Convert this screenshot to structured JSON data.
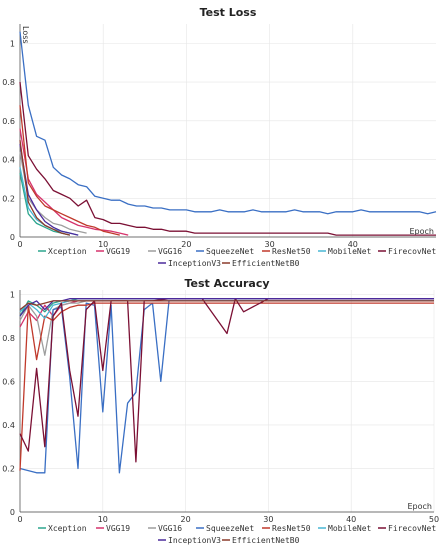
{
  "chart_data": [
    {
      "type": "line",
      "title": "Test Loss",
      "xlabel": "Epoch",
      "ylabel": "Loss",
      "xlim": [
        0,
        50
      ],
      "ylim": [
        0,
        1.1
      ],
      "xticks": [
        0,
        10,
        20,
        30,
        40
      ],
      "yticks": [
        0,
        0.2,
        0.4,
        0.6,
        0.8,
        1
      ],
      "grid": true,
      "legend": "bottom",
      "series": [
        {
          "name": "Xception",
          "color": "#2ca58d",
          "x": [
            0,
            1,
            2,
            3,
            4,
            5,
            6
          ],
          "values": [
            0.33,
            0.12,
            0.07,
            0.05,
            0.03,
            0.02,
            0.01
          ]
        },
        {
          "name": "VGG19",
          "color": "#d6336c",
          "x": [
            0,
            1,
            2,
            3,
            4,
            5,
            6,
            7,
            8,
            9,
            10,
            11,
            12,
            13
          ],
          "values": [
            0.56,
            0.3,
            0.22,
            0.18,
            0.14,
            0.1,
            0.08,
            0.06,
            0.05,
            0.04,
            0.035,
            0.03,
            0.02,
            0.01
          ]
        },
        {
          "name": "VGG16",
          "color": "#9e9e9e",
          "x": [
            0,
            1,
            2,
            3,
            4,
            5,
            6,
            7,
            8
          ],
          "values": [
            0.44,
            0.2,
            0.14,
            0.1,
            0.07,
            0.06,
            0.04,
            0.03,
            0.02
          ]
        },
        {
          "name": "SqueezeNet",
          "color": "#3a6fc4",
          "x": [
            0,
            1,
            2,
            3,
            4,
            5,
            6,
            7,
            8,
            9,
            10,
            11,
            12,
            13,
            14,
            15,
            16,
            17,
            18,
            19,
            20,
            21,
            22,
            23,
            24,
            25,
            26,
            27,
            28,
            29,
            30,
            31,
            32,
            33,
            34,
            35,
            36,
            37,
            38,
            39,
            40,
            41,
            42,
            43,
            44,
            45,
            46,
            47,
            48,
            49,
            50
          ],
          "values": [
            1.06,
            0.68,
            0.52,
            0.5,
            0.36,
            0.32,
            0.3,
            0.27,
            0.26,
            0.21,
            0.2,
            0.19,
            0.19,
            0.17,
            0.16,
            0.16,
            0.15,
            0.15,
            0.14,
            0.14,
            0.14,
            0.13,
            0.13,
            0.13,
            0.14,
            0.13,
            0.13,
            0.13,
            0.14,
            0.13,
            0.13,
            0.13,
            0.13,
            0.14,
            0.13,
            0.13,
            0.13,
            0.12,
            0.13,
            0.13,
            0.13,
            0.14,
            0.13,
            0.13,
            0.13,
            0.13,
            0.13,
            0.13,
            0.13,
            0.12,
            0.13
          ]
        },
        {
          "name": "ResNet50",
          "color": "#c0392b",
          "x": [
            0,
            1,
            2,
            3,
            4,
            5,
            6,
            7,
            8,
            9,
            10,
            11,
            12
          ],
          "values": [
            0.68,
            0.28,
            0.21,
            0.16,
            0.14,
            0.12,
            0.1,
            0.08,
            0.06,
            0.05,
            0.03,
            0.02,
            0.01
          ]
        },
        {
          "name": "MobileNet",
          "color": "#48b7d4",
          "x": [
            0,
            1,
            2,
            3,
            4,
            5,
            6,
            7
          ],
          "values": [
            0.36,
            0.15,
            0.09,
            0.06,
            0.04,
            0.03,
            0.02,
            0.01
          ]
        },
        {
          "name": "FirecovNet",
          "color": "#7b1034",
          "x": [
            0,
            1,
            2,
            3,
            4,
            5,
            6,
            7,
            8,
            9,
            10,
            11,
            12,
            13,
            14,
            15,
            16,
            17,
            18,
            19,
            20,
            21,
            22,
            23,
            24,
            25,
            26,
            27,
            28,
            29,
            30,
            31,
            32,
            33,
            34,
            35,
            36,
            37,
            38,
            39,
            40,
            41,
            42,
            43,
            44,
            45,
            46,
            47,
            48,
            49,
            50
          ],
          "values": [
            0.8,
            0.42,
            0.35,
            0.3,
            0.24,
            0.22,
            0.2,
            0.16,
            0.19,
            0.1,
            0.09,
            0.07,
            0.07,
            0.06,
            0.05,
            0.05,
            0.04,
            0.04,
            0.03,
            0.03,
            0.03,
            0.02,
            0.02,
            0.02,
            0.02,
            0.02,
            0.02,
            0.02,
            0.02,
            0.02,
            0.02,
            0.02,
            0.02,
            0.02,
            0.02,
            0.02,
            0.02,
            0.02,
            0.01,
            0.01,
            0.01,
            0.01,
            0.01,
            0.01,
            0.01,
            0.01,
            0.01,
            0.01,
            0.01,
            0.01,
            0.01
          ]
        },
        {
          "name": "InceptionV3",
          "color": "#4b2a9b",
          "x": [
            0,
            1,
            2,
            3,
            4,
            5,
            6,
            7
          ],
          "values": [
            0.48,
            0.22,
            0.14,
            0.08,
            0.05,
            0.03,
            0.02,
            0.01
          ]
        },
        {
          "name": "EfficientNetB0",
          "color": "#8b3a2a",
          "x": [
            0,
            1,
            2,
            3,
            4,
            5,
            6
          ],
          "values": [
            0.5,
            0.18,
            0.1,
            0.06,
            0.04,
            0.02,
            0.01
          ]
        }
      ]
    },
    {
      "type": "line",
      "title": "Test Accuracy",
      "xlabel": "Epoch",
      "ylabel": "",
      "xlim": [
        0,
        50
      ],
      "ylim": [
        0,
        1.02
      ],
      "xticks": [
        0,
        10,
        20,
        30,
        40,
        50
      ],
      "yticks": [
        0,
        0.2,
        0.4,
        0.6,
        0.8,
        1
      ],
      "grid": true,
      "legend": "bottom",
      "series": [
        {
          "name": "Xception",
          "color": "#2ca58d",
          "x": [
            0,
            1,
            2,
            3,
            4,
            5,
            6,
            7,
            8,
            9,
            10,
            15,
            20,
            30,
            40,
            50
          ],
          "values": [
            0.9,
            0.97,
            0.95,
            0.92,
            0.96,
            0.97,
            0.97,
            0.98,
            0.98,
            0.98,
            0.98,
            0.98,
            0.98,
            0.98,
            0.98,
            0.98
          ]
        },
        {
          "name": "VGG19",
          "color": "#d6336c",
          "x": [
            0,
            1,
            2,
            3,
            4,
            5,
            6,
            7,
            8,
            9,
            10,
            15,
            20,
            30,
            40,
            50
          ],
          "values": [
            0.85,
            0.92,
            0.88,
            0.95,
            0.9,
            0.95,
            0.96,
            0.97,
            0.97,
            0.97,
            0.97,
            0.97,
            0.97,
            0.97,
            0.97,
            0.97
          ]
        },
        {
          "name": "VGG16",
          "color": "#9e9e9e",
          "x": [
            0,
            1,
            2,
            3,
            4,
            5,
            6,
            7,
            8,
            9,
            10,
            15,
            20,
            30,
            40,
            50
          ],
          "values": [
            0.88,
            0.95,
            0.9,
            0.72,
            0.93,
            0.95,
            0.96,
            0.96,
            0.97,
            0.97,
            0.97,
            0.97,
            0.97,
            0.97,
            0.97,
            0.97
          ]
        },
        {
          "name": "SqueezeNet",
          "color": "#3a6fc4",
          "x": [
            0,
            1,
            2,
            3,
            4,
            5,
            6,
            7,
            8,
            9,
            10,
            11,
            12,
            13,
            14,
            15,
            16,
            17,
            18,
            19,
            20,
            21,
            22,
            25,
            30,
            35,
            40,
            45,
            50
          ],
          "values": [
            0.2,
            0.19,
            0.18,
            0.18,
            0.93,
            0.94,
            0.62,
            0.2,
            0.96,
            0.95,
            0.46,
            0.95,
            0.18,
            0.5,
            0.55,
            0.93,
            0.96,
            0.6,
            0.97,
            0.97,
            0.97,
            0.97,
            0.97,
            0.97,
            0.97,
            0.97,
            0.97,
            0.97,
            0.97
          ]
        },
        {
          "name": "ResNet50",
          "color": "#c0392b",
          "x": [
            0,
            1,
            2,
            3,
            4,
            5,
            6,
            7,
            8,
            9,
            10,
            15,
            20,
            30,
            40,
            50
          ],
          "values": [
            0.19,
            0.95,
            0.7,
            0.9,
            0.88,
            0.92,
            0.94,
            0.95,
            0.95,
            0.96,
            0.96,
            0.96,
            0.96,
            0.96,
            0.96,
            0.96
          ]
        },
        {
          "name": "MobileNet",
          "color": "#48b7d4",
          "x": [
            0,
            1,
            2,
            3,
            4,
            5,
            6,
            7,
            8,
            9,
            10,
            15,
            20,
            30,
            40,
            50
          ],
          "values": [
            0.92,
            0.96,
            0.93,
            0.89,
            0.95,
            0.96,
            0.97,
            0.97,
            0.97,
            0.97,
            0.97,
            0.97,
            0.97,
            0.97,
            0.97,
            0.97
          ]
        },
        {
          "name": "FirecovNet",
          "color": "#7b1034",
          "x": [
            0,
            1,
            2,
            3,
            4,
            5,
            6,
            7,
            8,
            9,
            10,
            11,
            12,
            13,
            14,
            15,
            16,
            18,
            20,
            22,
            25,
            26,
            27,
            30,
            35,
            40,
            45,
            50
          ],
          "values": [
            0.36,
            0.28,
            0.66,
            0.3,
            0.9,
            0.96,
            0.65,
            0.44,
            0.93,
            0.97,
            0.65,
            0.97,
            0.97,
            0.97,
            0.23,
            0.97,
            0.97,
            0.98,
            0.98,
            0.98,
            0.82,
            0.98,
            0.92,
            0.98,
            0.98,
            0.98,
            0.98,
            0.98
          ]
        },
        {
          "name": "InceptionV3",
          "color": "#4b2a9b",
          "x": [
            0,
            1,
            2,
            3,
            4,
            5,
            6,
            7,
            8,
            9,
            10,
            15,
            20,
            30,
            40,
            50
          ],
          "values": [
            0.9,
            0.95,
            0.97,
            0.93,
            0.97,
            0.97,
            0.98,
            0.98,
            0.98,
            0.98,
            0.98,
            0.98,
            0.98,
            0.98,
            0.98,
            0.98
          ]
        },
        {
          "name": "EfficientNetB0",
          "color": "#8b3a2a",
          "x": [
            0,
            1,
            2,
            3,
            4,
            5,
            6,
            7,
            8,
            9,
            10,
            15,
            20,
            30,
            40,
            50
          ],
          "values": [
            0.93,
            0.96,
            0.95,
            0.96,
            0.97,
            0.97,
            0.97,
            0.97,
            0.97,
            0.97,
            0.97,
            0.97,
            0.97,
            0.97,
            0.97,
            0.97
          ]
        }
      ]
    }
  ]
}
